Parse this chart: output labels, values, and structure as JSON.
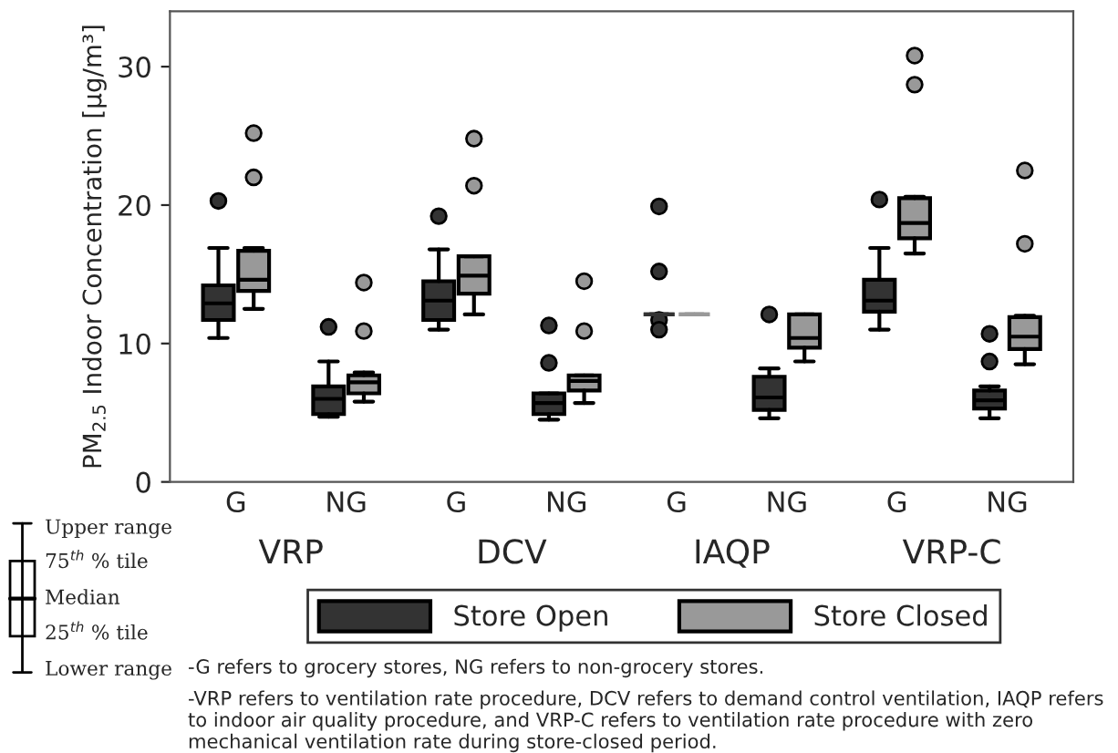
{
  "chart_data": {
    "type": "box",
    "ylabel": "PM$_{2.5}$ Indoor Concentration [μg/m³]",
    "categories": [
      "G",
      "NG",
      "G",
      "NG",
      "G",
      "NG",
      "G",
      "NG"
    ],
    "ylim": [
      0,
      34
    ],
    "yticks": [
      0,
      10,
      20,
      30
    ],
    "grid": false,
    "legend": "bottom",
    "marker": "circle",
    "series": [
      {
        "name": "Store Open",
        "color": "#333333",
        "boxes": [
          {
            "low": 10.4,
            "q1": 11.7,
            "median": 12.9,
            "q3": 14.2,
            "high": 16.9,
            "outliers": [
              20.3
            ]
          },
          {
            "low": 4.7,
            "q1": 4.9,
            "median": 6.0,
            "q3": 6.9,
            "high": 8.7,
            "outliers": [
              11.2
            ]
          },
          {
            "low": 11.0,
            "q1": 11.7,
            "median": 13.1,
            "q3": 14.5,
            "high": 16.8,
            "outliers": [
              19.2
            ]
          },
          {
            "low": 4.5,
            "q1": 4.9,
            "median": 5.7,
            "q3": 6.4,
            "high": 6.4,
            "outliers": [
              11.3,
              8.6
            ]
          },
          {
            "low": 12.1,
            "q1": 12.1,
            "median": 12.1,
            "q3": 12.1,
            "high": 12.1,
            "outliers": [
              19.9,
              15.2,
              11.7,
              11.0
            ]
          },
          {
            "low": 4.6,
            "q1": 5.2,
            "median": 6.1,
            "q3": 7.6,
            "high": 8.2,
            "outliers": [
              12.1
            ]
          },
          {
            "low": 11.0,
            "q1": 12.3,
            "median": 13.1,
            "q3": 14.6,
            "high": 16.9,
            "outliers": [
              20.4
            ]
          },
          {
            "low": 4.6,
            "q1": 5.3,
            "median": 5.9,
            "q3": 6.6,
            "high": 6.9,
            "outliers": [
              10.7,
              8.7
            ]
          }
        ]
      },
      {
        "name": "Store Closed",
        "color": "#999999",
        "boxes": [
          {
            "low": 12.5,
            "q1": 13.8,
            "median": 14.6,
            "q3": 16.7,
            "high": 16.9,
            "outliers": [
              25.2,
              22.0
            ]
          },
          {
            "low": 5.8,
            "q1": 6.4,
            "median": 7.2,
            "q3": 7.7,
            "high": 7.9,
            "outliers": [
              14.4,
              10.9
            ]
          },
          {
            "low": 12.1,
            "q1": 13.6,
            "median": 14.9,
            "q3": 16.3,
            "high": 16.3,
            "outliers": [
              24.8,
              21.4
            ]
          },
          {
            "low": 5.7,
            "q1": 6.6,
            "median": 7.3,
            "q3": 7.7,
            "high": 7.7,
            "outliers": [
              14.5,
              10.9
            ]
          },
          {
            "low": 12.1,
            "q1": 12.1,
            "median": 12.1,
            "q3": 12.1,
            "high": 12.1
          },
          {
            "low": 8.7,
            "q1": 9.7,
            "median": 10.4,
            "q3": 12.1,
            "high": 12.1
          },
          {
            "low": 16.5,
            "q1": 17.6,
            "median": 18.7,
            "q3": 20.5,
            "high": 20.6,
            "outliers": [
              30.8,
              28.7
            ]
          },
          {
            "low": 8.5,
            "q1": 9.6,
            "median": 10.5,
            "q3": 11.9,
            "high": 12.0,
            "outliers": [
              22.5,
              17.2
            ]
          }
        ]
      }
    ],
    "annotations": [
      "VRP",
      "DCV",
      "IAQP",
      "VRP-C",
      "Upper range",
      "75$^{th}$ % tile",
      "Median",
      "25$^{th}$ % tile",
      "Lower range",
      "-G refers to grocery stores, NG refers to non-grocery stores.",
      "-VRP refers to ventilation rate procedure, DCV refers to demand control ventilation, IAQP refers to indoor air quality procedure, and VRP-C refers to ventilation rate procedure with zero mechanical ventilation rate during store-closed period."
    ]
  }
}
